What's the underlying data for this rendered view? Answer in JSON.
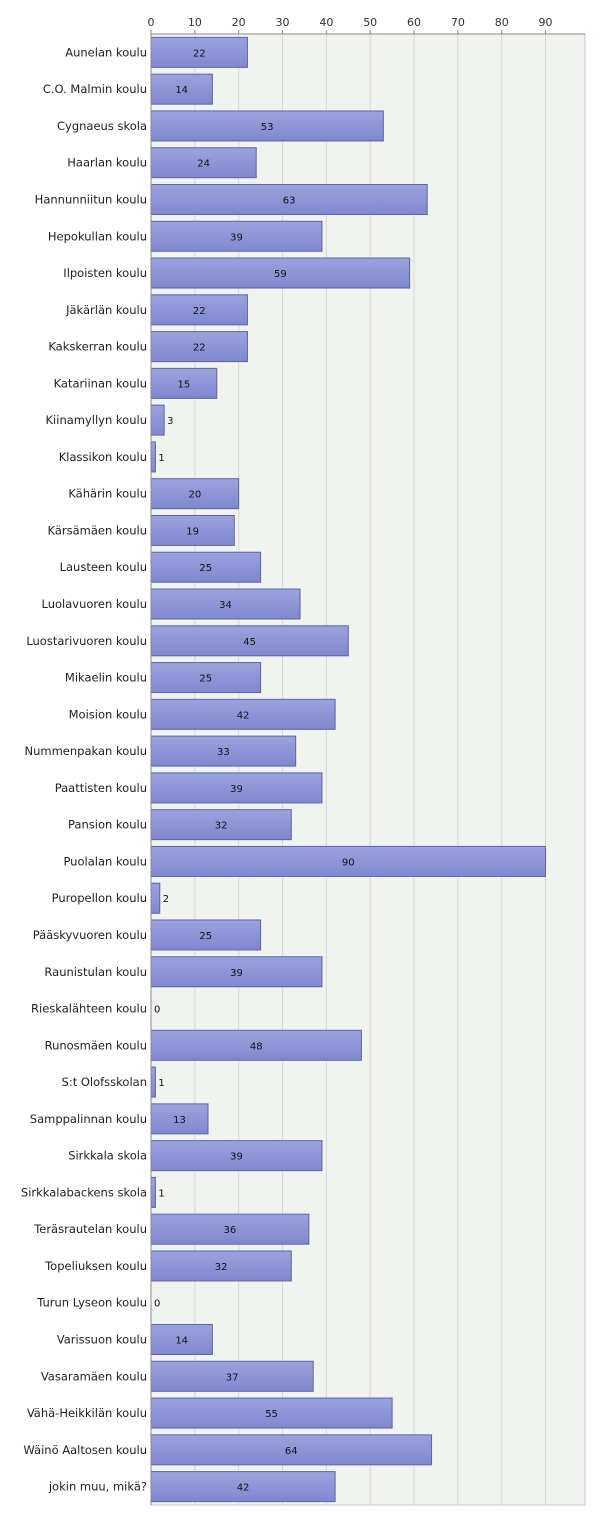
{
  "chart_data": {
    "type": "bar",
    "orientation": "horizontal",
    "categories": [
      "Aunelan koulu",
      "C.O. Malmin koulu",
      "Cygnaeus skola",
      "Haarlan koulu",
      "Hannunniitun koulu",
      "Hepokullan koulu",
      "Ilpoisten koulu",
      "Jäkärlän koulu",
      "Kakskerran koulu",
      "Katariinan koulu",
      "Kiinamyllyn koulu",
      "Klassikon koulu",
      "Kähärin koulu",
      "Kärsämäen koulu",
      "Lausteen koulu",
      "Luolavuoren koulu",
      "Luostarivuoren koulu",
      "Mikaelin koulu",
      "Moision koulu",
      "Nummenpakan koulu",
      "Paattisten koulu",
      "Pansion koulu",
      "Puolalan koulu",
      "Puropellon koulu",
      "Pääskyvuoren koulu",
      "Raunistulan koulu",
      "Rieskalähteen koulu",
      "Runosmäen koulu",
      "S:t Olofsskolan",
      "Samppalinnan koulu",
      "Sirkkala skola",
      "Sirkkalabackens skola",
      "Teräsrautelan koulu",
      "Topeliuksen koulu",
      "Turun Lyseon koulu",
      "Varissuon koulu",
      "Vasaramäen koulu",
      "Vähä-Heikkilän koulu",
      "Wäinö Aaltosen koulu",
      "jokin muu, mikä?"
    ],
    "values": [
      22,
      14,
      53,
      24,
      63,
      39,
      59,
      22,
      22,
      15,
      3,
      1,
      20,
      19,
      25,
      34,
      45,
      25,
      42,
      33,
      39,
      32,
      90,
      2,
      25,
      39,
      0,
      48,
      1,
      13,
      39,
      1,
      36,
      32,
      0,
      14,
      37,
      55,
      64,
      42
    ],
    "xlim": [
      0,
      99
    ],
    "xticks": [
      0,
      10,
      20,
      30,
      40,
      50,
      60,
      70,
      80,
      90
    ],
    "xtick_position": "top",
    "grid": true,
    "legend": "none",
    "title": "",
    "xlabel": "",
    "ylabel": "",
    "colors": {
      "bar_fill": "#7f88cf",
      "bar_top": "#9ba3dd",
      "bar_edge": "#5a64ad",
      "plot_bg": "#f1f3ee",
      "grid": "#d6d9d2",
      "axis": "#888888"
    }
  }
}
